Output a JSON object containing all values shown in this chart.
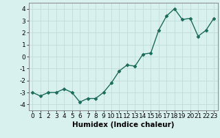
{
  "x": [
    0,
    1,
    2,
    3,
    4,
    5,
    6,
    7,
    8,
    9,
    10,
    11,
    12,
    13,
    14,
    15,
    16,
    17,
    18,
    19,
    20,
    21,
    22,
    23
  ],
  "y": [
    -3.0,
    -3.3,
    -3.0,
    -3.0,
    -2.7,
    -3.0,
    -3.8,
    -3.5,
    -3.5,
    -3.0,
    -2.2,
    -1.2,
    -0.7,
    -0.8,
    0.2,
    0.3,
    2.2,
    3.4,
    4.0,
    3.1,
    3.2,
    1.7,
    2.2,
    3.2
  ],
  "line_color": "#1a6b5a",
  "marker": "D",
  "marker_size": 2.5,
  "bg_color": "#d8f0ee",
  "grid_color": "#c0dcd8",
  "xlabel": "Humidex (Indice chaleur)",
  "ylim": [
    -4.5,
    4.5
  ],
  "xlim": [
    -0.5,
    23.5
  ],
  "yticks": [
    -4,
    -3,
    -2,
    -1,
    0,
    1,
    2,
    3,
    4
  ],
  "xticks": [
    0,
    1,
    2,
    3,
    4,
    5,
    6,
    7,
    8,
    9,
    10,
    11,
    12,
    13,
    14,
    15,
    16,
    17,
    18,
    19,
    20,
    21,
    22,
    23
  ],
  "tick_fontsize": 6.5,
  "xlabel_fontsize": 7.5
}
